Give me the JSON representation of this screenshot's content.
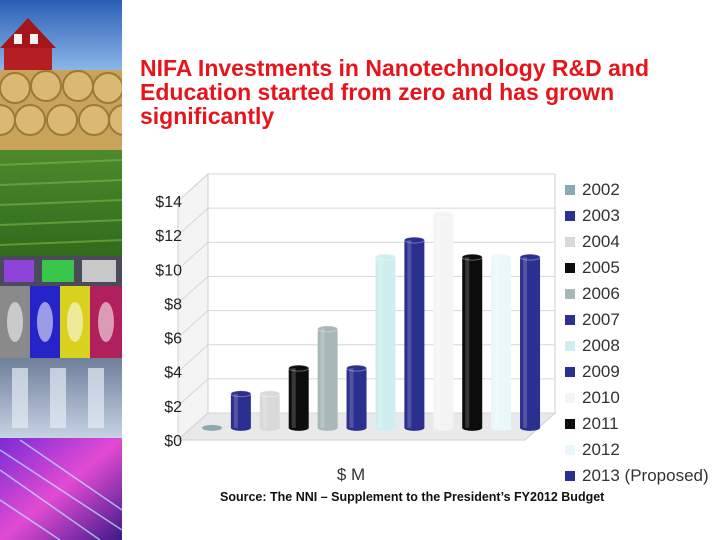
{
  "slide": {
    "title": "NIFA Investments in Nanotechnology R&D and Education started from zero and has grown significantly",
    "source": "Source: The NNI – Supplement to the President’s FY2012 Budget"
  },
  "chart_data": {
    "type": "bar",
    "title": "",
    "xlabel": "$ M",
    "ylabel": "",
    "ylim": [
      0,
      14
    ],
    "yticks": [
      0,
      2,
      4,
      6,
      8,
      10,
      12,
      14
    ],
    "ytick_labels": [
      "$0",
      "$2",
      "$4",
      "$6",
      "$8",
      "$10",
      "$12",
      "$14"
    ],
    "grid": true,
    "legend_position": "right",
    "categories": [
      "2002",
      "2003",
      "2004",
      "2005",
      "2006",
      "2007",
      "2008",
      "2009",
      "2010",
      "2011",
      "2012",
      "2013 (Proposed)"
    ],
    "values": [
      0,
      2,
      2,
      3.5,
      5.8,
      3.5,
      10,
      11,
      12.5,
      10,
      10,
      10
    ],
    "colors": [
      "#8aa9b0",
      "#2b2f8f",
      "#d9d9d9",
      "#0d0d0d",
      "#a9b8b7",
      "#2b2f8f",
      "#cfeef0",
      "#2b2f8f",
      "#f4f4f4",
      "#0d0d0d",
      "#e9f8fa",
      "#2b2f8f"
    ]
  }
}
